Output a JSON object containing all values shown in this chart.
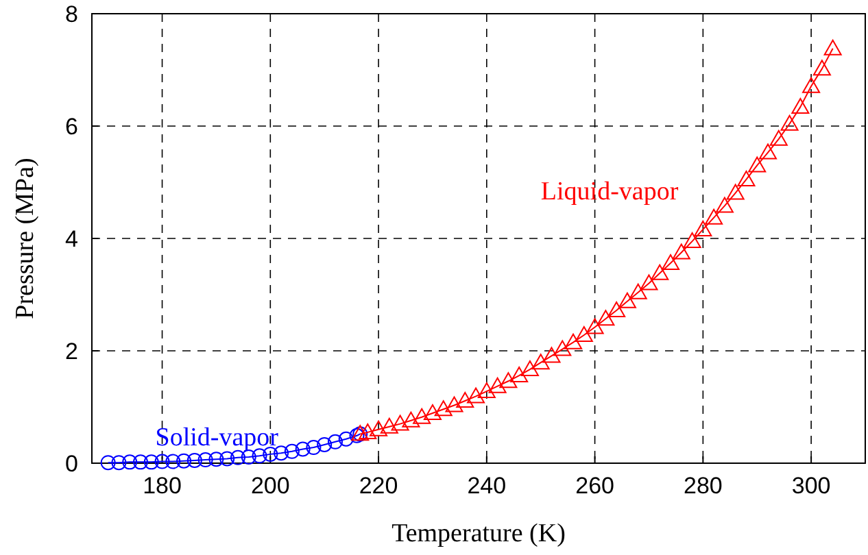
{
  "chart_data": {
    "type": "line",
    "xlabel": "Temperature (K)",
    "ylabel": "Pressure (MPa)",
    "xlim": [
      167,
      310
    ],
    "xticks": [
      180,
      200,
      220,
      240,
      260,
      280,
      300
    ],
    "ylim": [
      0,
      8
    ],
    "yticks": [
      0,
      2,
      4,
      6,
      8
    ],
    "grid": true,
    "line_style": "solid",
    "series": [
      {
        "name": "Solid-vapor",
        "color": "#0000ff",
        "marker": "circle",
        "x": [
          170,
          172,
          174,
          176,
          178,
          180,
          182,
          184,
          186,
          188,
          190,
          192,
          194,
          196,
          198,
          200,
          202,
          204,
          206,
          208,
          210,
          212,
          214,
          216,
          216.6
        ],
        "values": [
          0.01,
          0.01,
          0.02,
          0.02,
          0.02,
          0.03,
          0.03,
          0.04,
          0.05,
          0.06,
          0.07,
          0.08,
          0.1,
          0.11,
          0.13,
          0.16,
          0.18,
          0.21,
          0.25,
          0.28,
          0.33,
          0.38,
          0.43,
          0.49,
          0.52
        ]
      },
      {
        "name": "Liquid-vapor",
        "color": "#ff0000",
        "marker": "triangle",
        "x": [
          216.6,
          218,
          220,
          222,
          224,
          226,
          228,
          230,
          232,
          234,
          236,
          238,
          240,
          242,
          244,
          246,
          248,
          250,
          252,
          254,
          256,
          258,
          260,
          262,
          264,
          266,
          268,
          270,
          272,
          274,
          276,
          278,
          280,
          282,
          284,
          286,
          288,
          290,
          292,
          294,
          296,
          298,
          300,
          302,
          304
        ],
        "values": [
          0.52,
          0.55,
          0.6,
          0.65,
          0.7,
          0.76,
          0.82,
          0.89,
          0.96,
          1.03,
          1.11,
          1.19,
          1.28,
          1.37,
          1.46,
          1.56,
          1.67,
          1.79,
          1.91,
          2.03,
          2.15,
          2.28,
          2.42,
          2.57,
          2.72,
          2.88,
          3.04,
          3.2,
          3.38,
          3.56,
          3.75,
          3.95,
          4.16,
          4.37,
          4.58,
          4.81,
          5.05,
          5.3,
          5.53,
          5.77,
          6.04,
          6.34,
          6.71,
          7.02,
          7.38
        ]
      }
    ]
  }
}
